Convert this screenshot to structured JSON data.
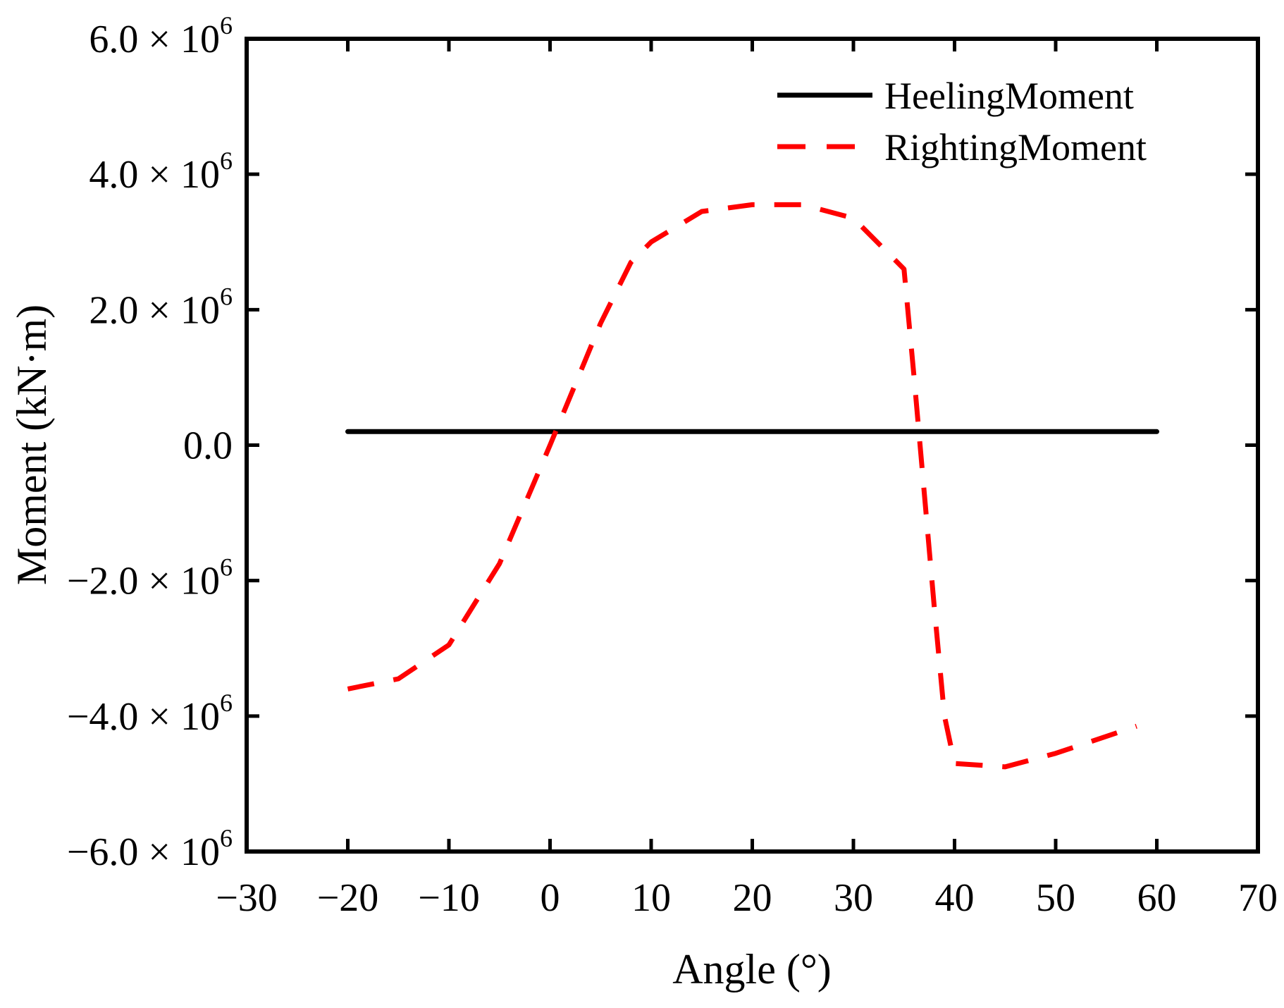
{
  "chart_data": {
    "type": "line",
    "xlabel": "Angle (°)",
    "ylabel": "Moment (kN·m)",
    "xlim": [
      -30,
      70
    ],
    "ylim": [
      -6000000,
      6000000
    ],
    "xticks": [
      -30,
      -20,
      -10,
      0,
      10,
      20,
      30,
      40,
      50,
      60,
      70
    ],
    "xtick_labels": [
      "−30",
      "−20",
      "−10",
      "0",
      "10",
      "20",
      "30",
      "40",
      "50",
      "60",
      "70"
    ],
    "yticks": [
      -6000000,
      -4000000,
      -2000000,
      0,
      2000000,
      4000000,
      6000000
    ],
    "ytick_labels": [
      {
        "mantissa": "−6.0 × 10",
        "exp": "6"
      },
      {
        "mantissa": "−4.0 × 10",
        "exp": "6"
      },
      {
        "mantissa": "−2.0 × 10",
        "exp": "6"
      },
      {
        "mantissa": "0.0",
        "exp": ""
      },
      {
        "mantissa": "2.0 × 10",
        "exp": "6"
      },
      {
        "mantissa": "4.0 × 10",
        "exp": "6"
      },
      {
        "mantissa": "6.0 × 10",
        "exp": "6"
      }
    ],
    "grid": false,
    "legend_position": "top-right",
    "series": [
      {
        "name": "HeelingMoment",
        "color": "#000000",
        "style": "solid",
        "x": [
          -20,
          60
        ],
        "y": [
          200000,
          200000
        ]
      },
      {
        "name": "RightingMoment",
        "color": "#ff0000",
        "style": "dashed",
        "x": [
          -20,
          -15,
          -10,
          -5,
          0,
          5,
          8,
          10,
          15,
          20,
          25,
          30,
          35,
          36,
          37,
          38,
          39,
          40,
          45,
          50,
          55,
          58
        ],
        "y": [
          -3600000,
          -3450000,
          -2950000,
          -1750000,
          0,
          1800000,
          2700000,
          3000000,
          3450000,
          3550000,
          3550000,
          3350000,
          2600000,
          1000000,
          -700000,
          -2400000,
          -4000000,
          -4700000,
          -4750000,
          -4550000,
          -4300000,
          -4150000
        ]
      }
    ]
  }
}
